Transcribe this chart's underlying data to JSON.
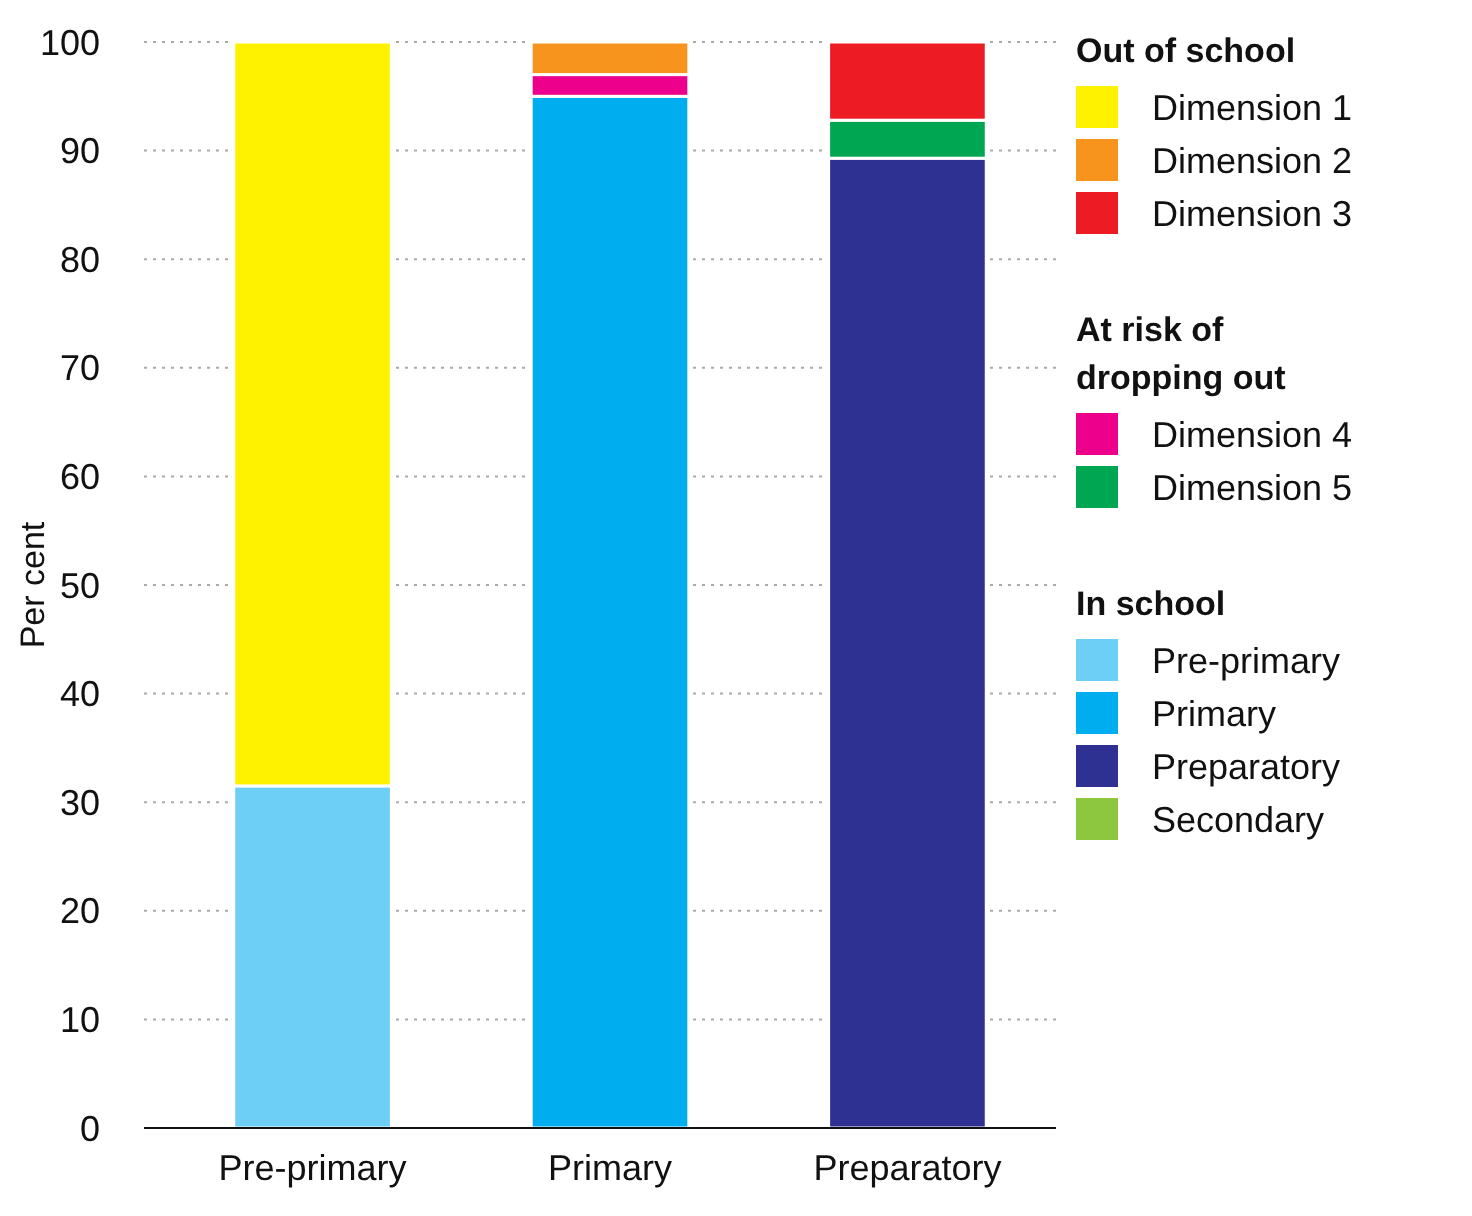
{
  "chart_data": {
    "type": "bar",
    "stacked": true,
    "ylabel": "Per cent",
    "categories": [
      "Pre-primary",
      "Primary",
      "Preparatory"
    ],
    "ylim": [
      0,
      100
    ],
    "yticks": [
      0,
      10,
      20,
      30,
      40,
      50,
      60,
      70,
      80,
      90,
      100
    ],
    "grid": "y",
    "legend": "right",
    "series": [
      {
        "name": "Pre-primary",
        "color": "#6dcff6",
        "values": [
          31.5,
          null,
          null
        ]
      },
      {
        "name": "Primary",
        "color": "#00aeef",
        "values": [
          null,
          95,
          null
        ]
      },
      {
        "name": "Preparatory",
        "color": "#2e3192",
        "values": [
          null,
          null,
          89.3
        ]
      },
      {
        "name": "Secondary",
        "color": "#8dc63f",
        "values": [
          null,
          null,
          null
        ]
      },
      {
        "name": "Dimension 4",
        "color": "#ec008c",
        "values": [
          null,
          2,
          null
        ]
      },
      {
        "name": "Dimension 5",
        "color": "#00a651",
        "values": [
          null,
          null,
          3.5
        ]
      },
      {
        "name": "Dimension 1",
        "color": "#fff200",
        "values": [
          68.5,
          null,
          null
        ]
      },
      {
        "name": "Dimension 2",
        "color": "#f7941d",
        "values": [
          null,
          3,
          null
        ]
      },
      {
        "name": "Dimension 3",
        "color": "#ed1c24",
        "values": [
          null,
          null,
          7.2
        ]
      }
    ],
    "annotations": [
      "Out of school",
      "At risk of\ndropping out",
      "In school"
    ]
  }
}
